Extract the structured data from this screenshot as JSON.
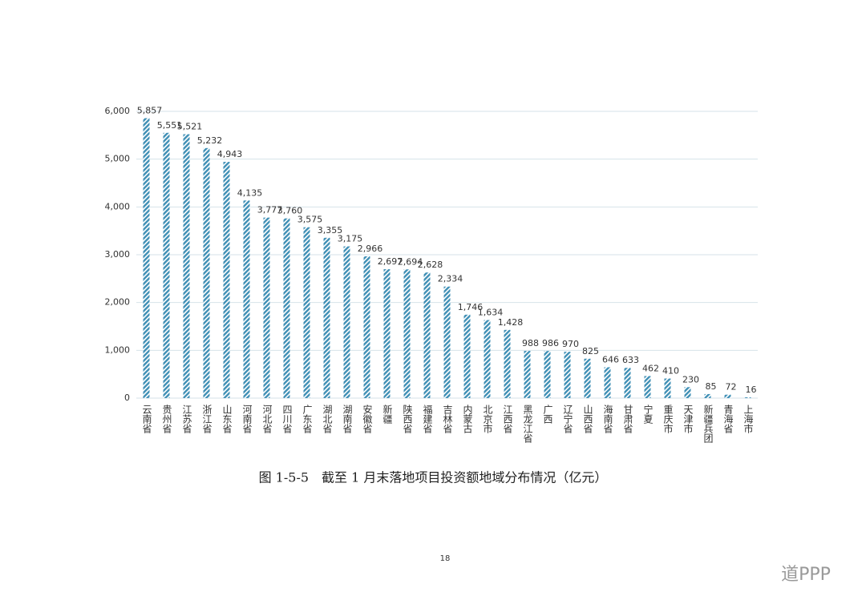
{
  "chart_data": {
    "type": "bar",
    "title": "图 1-5-5　截至 1 月末落地项目投资额地域分布情况（亿元）",
    "categories": [
      "云南省",
      "贵州省",
      "江苏省",
      "浙江省",
      "山东省",
      "河南省",
      "河北省",
      "四川省",
      "广东省",
      "湖北省",
      "湖南省",
      "安徽省",
      "新疆",
      "陕西省",
      "福建省",
      "吉林省",
      "内蒙古",
      "北京市",
      "江西省",
      "黑龙江省",
      "广西",
      "辽宁省",
      "山西省",
      "海南省",
      "甘肃省",
      "宁夏",
      "重庆市",
      "天津市",
      "新疆兵团",
      "青海省",
      "上海市"
    ],
    "values": [
      5857,
      5551,
      5521,
      5232,
      4943,
      4135,
      3777,
      3760,
      3575,
      3355,
      3175,
      2966,
      2697,
      2694,
      2628,
      2334,
      1746,
      1634,
      1428,
      988,
      986,
      970,
      825,
      646,
      633,
      462,
      410,
      230,
      85,
      72,
      16
    ],
    "value_labels": [
      "5,857",
      "5,551",
      "5,521",
      "5,232",
      "4,943",
      "4,135",
      "3,777",
      "3,760",
      "3,575",
      "3,355",
      "3,175",
      "2,966",
      "2,697",
      "2,694",
      "2,628",
      "2,334",
      "1,746",
      "1,634",
      "1,428",
      "988",
      "986",
      "970",
      "825",
      "646",
      "633",
      "462",
      "410",
      "230",
      "85",
      "72",
      "16"
    ],
    "color": "#3f8fb5",
    "ylim": [
      0,
      6000
    ],
    "yticks": [
      0,
      {
        "value": 1000,
        "label": "1,000"
      },
      {
        "value": 2000,
        "label": "2,000"
      },
      {
        "value": 3000,
        "label": "3,000"
      },
      {
        "value": 4000,
        "label": "4,000"
      },
      {
        "value": 5000,
        "label": "5,000"
      },
      {
        "value": 6000,
        "label": "6,000"
      }
    ],
    "grid": true
  },
  "page_number": "18",
  "watermark": "道PPP"
}
